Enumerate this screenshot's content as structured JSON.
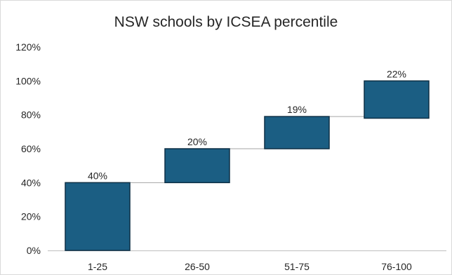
{
  "chart_data": {
    "type": "bar",
    "subtype": "waterfall",
    "title": "NSW schools by ICSEA percentile",
    "categories": [
      "1-25",
      "26-50",
      "51-75",
      "76-100"
    ],
    "values": [
      40,
      20,
      19,
      22
    ],
    "starts": [
      0,
      40,
      60,
      78
    ],
    "data_labels": [
      "40%",
      "20%",
      "19%",
      "22%"
    ],
    "yticks": [
      "0%",
      "20%",
      "40%",
      "60%",
      "80%",
      "100%",
      "120%"
    ],
    "ylim": [
      0,
      120
    ],
    "xlabel": "",
    "ylabel": "",
    "grid": false,
    "legend": "none",
    "colors": {
      "bar_fill": "#1b5e83",
      "bar_stroke": "#0d2f45",
      "connector": "#a6a6a6",
      "axis": "#bfbfbf",
      "text": "#262626"
    }
  }
}
